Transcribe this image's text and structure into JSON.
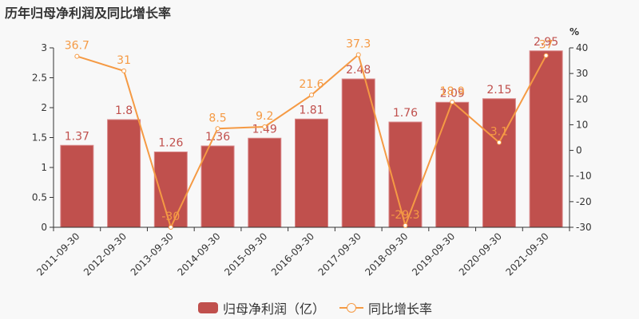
{
  "title": "历年归母净利润及同比增长率",
  "legend": {
    "bar_label": "归母净利润（亿）",
    "line_label": "同比增长率"
  },
  "right_axis_unit": "%",
  "colors": {
    "bar": "#c0504d",
    "line": "#f59a44",
    "axis": "#333333",
    "background": "#f8f8f8"
  },
  "chart_data": {
    "type": "bar+line",
    "title": "历年归母净利润及同比增长率",
    "categories": [
      "2011-09-30",
      "2012-09-30",
      "2013-09-30",
      "2014-09-30",
      "2015-09-30",
      "2016-09-30",
      "2017-09-30",
      "2018-09-30",
      "2019-09-30",
      "2020-09-30",
      "2021-09-30"
    ],
    "series": [
      {
        "name": "归母净利润（亿）",
        "type": "bar",
        "axis": "left",
        "values": [
          1.37,
          1.8,
          1.26,
          1.36,
          1.49,
          1.81,
          2.48,
          1.76,
          2.09,
          2.15,
          2.95
        ]
      },
      {
        "name": "同比增长率",
        "type": "line",
        "axis": "right",
        "values": [
          36.7,
          31,
          -30,
          8.5,
          9.2,
          21.6,
          37.3,
          -29.3,
          18.9,
          3.1,
          37
        ]
      }
    ],
    "left_axis": {
      "ylim": [
        0,
        3
      ],
      "ticks": [
        "0",
        "0.5",
        "1",
        "1.5",
        "2",
        "2.5",
        "3"
      ]
    },
    "right_axis": {
      "ylim": [
        -30,
        40
      ],
      "ticks": [
        "-30",
        "-20",
        "-10",
        "0",
        "10",
        "20",
        "30",
        "40"
      ],
      "label": "%"
    },
    "xlabel": "",
    "ylabel": "",
    "grid": false,
    "legend_position": "bottom"
  }
}
